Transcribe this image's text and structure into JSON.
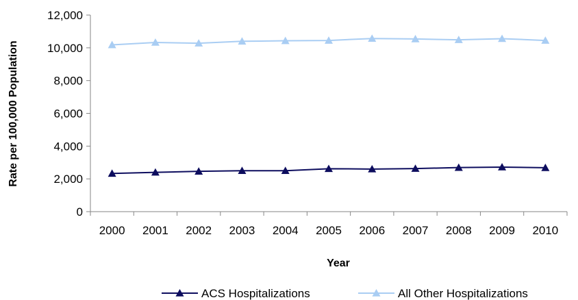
{
  "chart_data": {
    "type": "line",
    "title": "",
    "xlabel": "Year",
    "ylabel": "Rate per 100,000 Population",
    "categories": [
      "2000",
      "2001",
      "2002",
      "2003",
      "2004",
      "2005",
      "2006",
      "2007",
      "2008",
      "2009",
      "2010"
    ],
    "ylim": [
      0,
      12000
    ],
    "yticks": [
      0,
      2000,
      4000,
      6000,
      8000,
      10000,
      12000
    ],
    "ytick_labels": [
      "0",
      "2,000",
      "4,000",
      "6,000",
      "8,000",
      "10,000",
      "12,000"
    ],
    "grid": false,
    "legend_position": "bottom",
    "series": [
      {
        "name": "ACS Hospitalizations",
        "color": "#0d0d5e",
        "marker": "triangle",
        "values": [
          2330,
          2400,
          2460,
          2500,
          2500,
          2620,
          2600,
          2630,
          2690,
          2720,
          2680
        ]
      },
      {
        "name": "All Other Hospitalizations",
        "color": "#a9cdf3",
        "marker": "triangle",
        "values": [
          10180,
          10330,
          10280,
          10400,
          10430,
          10450,
          10570,
          10540,
          10490,
          10560,
          10450
        ]
      }
    ]
  }
}
